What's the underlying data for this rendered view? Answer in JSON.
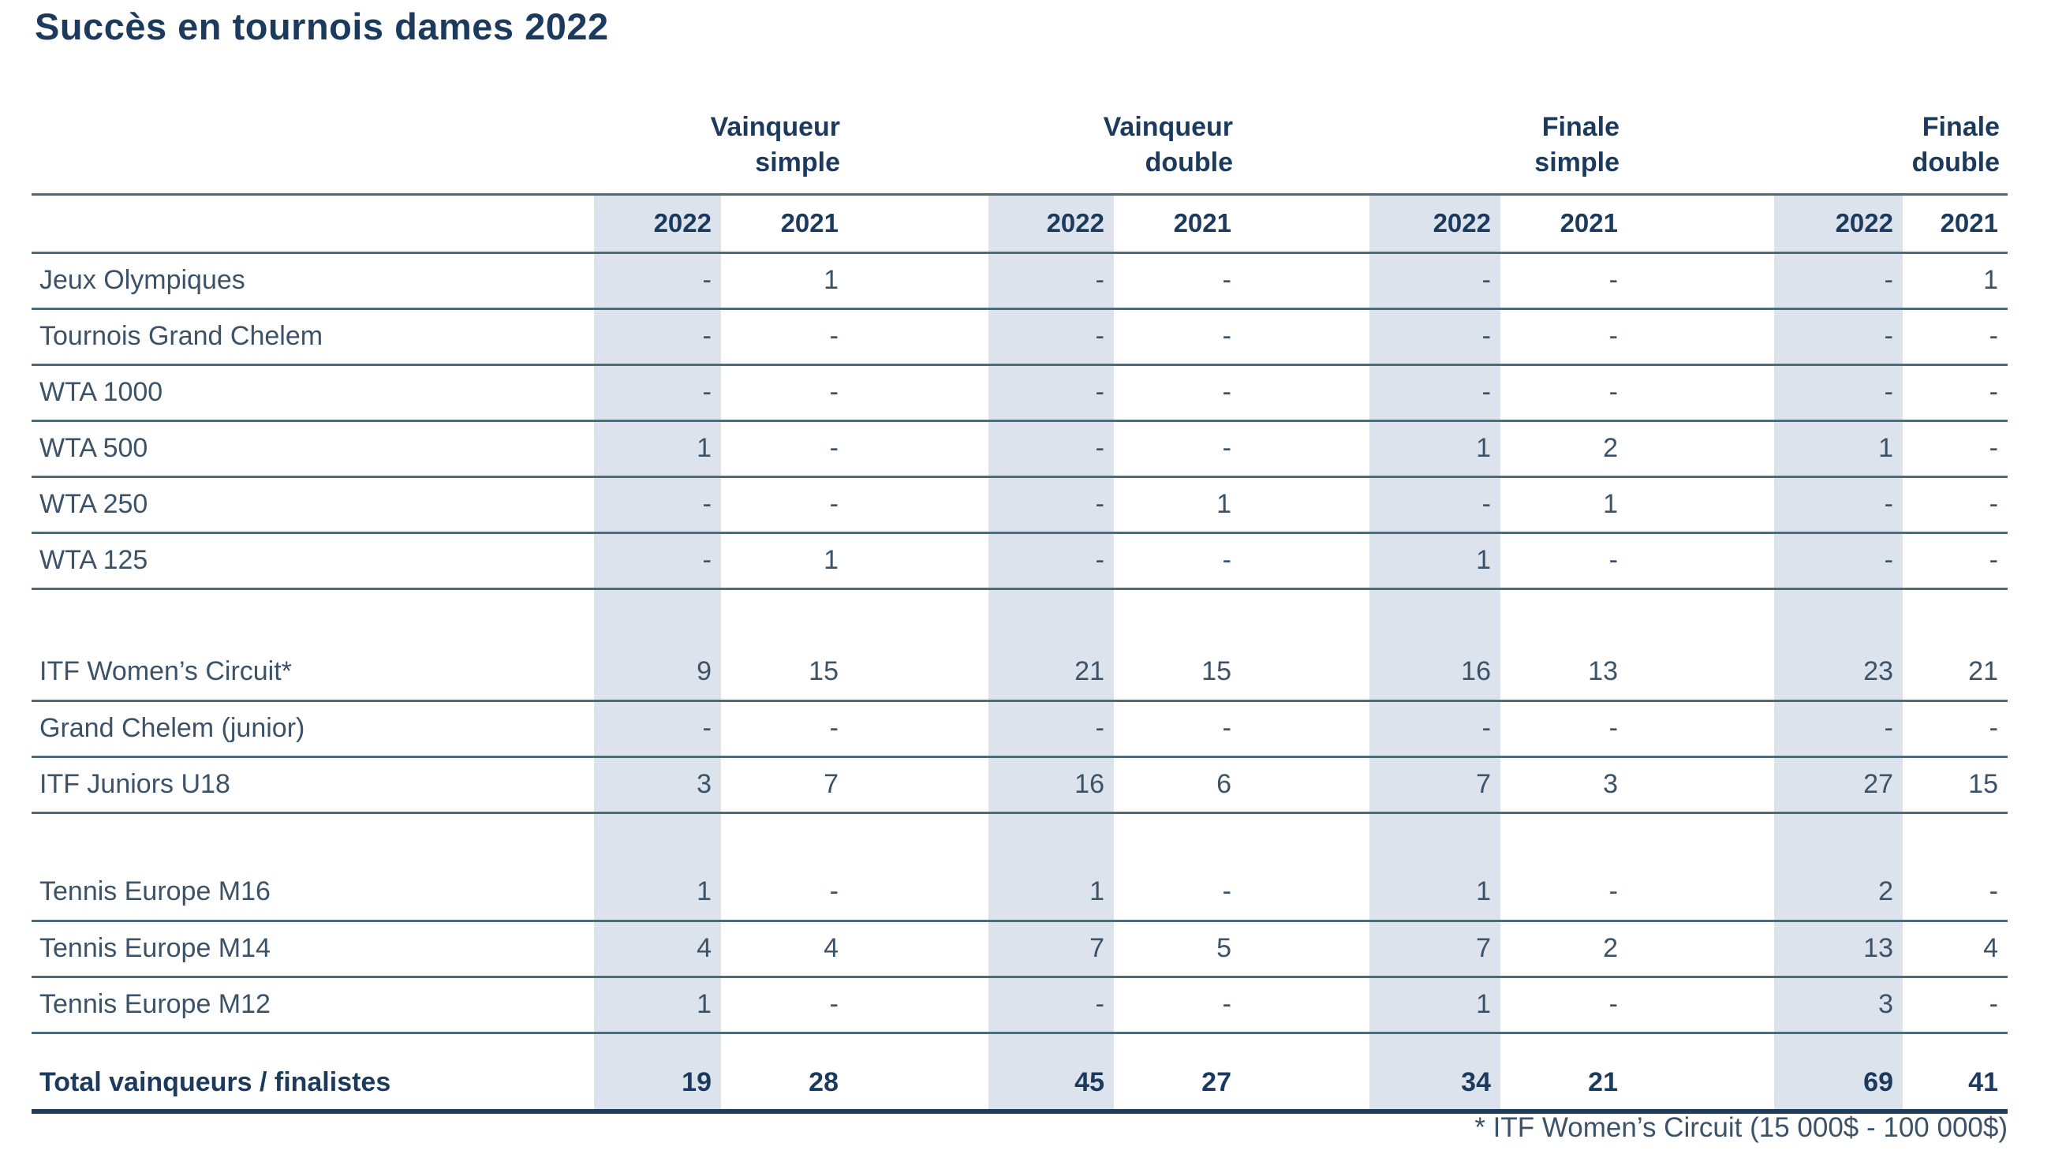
{
  "title": "Succès en tournois dames 2022",
  "footnote": "* ITF Women’s Circuit (15 000$ - 100 000$)",
  "colors": {
    "band": "#dde3ec",
    "rule": "#4e6b78",
    "rule_heavy": "#1f3d5c",
    "heading_text": "#1b3a5e",
    "body_text": "#3b5268"
  },
  "table": {
    "groups": [
      {
        "line1": "Vainqueur",
        "line2": "simple"
      },
      {
        "line1": "Vainqueur",
        "line2": "double"
      },
      {
        "line1": "Finale",
        "line2": "simple"
      },
      {
        "line1": "Finale",
        "line2": "double"
      }
    ],
    "year_columns": [
      "2022",
      "2021"
    ],
    "sections": [
      {
        "name": "pro",
        "rows": [
          {
            "label": "Jeux Olympiques",
            "values": [
              "-",
              "1",
              "-",
              "-",
              "-",
              "-",
              "-",
              "1"
            ]
          },
          {
            "label": "Tournois Grand Chelem",
            "values": [
              "-",
              "-",
              "-",
              "-",
              "-",
              "-",
              "-",
              "-"
            ]
          },
          {
            "label": "WTA 1000",
            "values": [
              "-",
              "-",
              "-",
              "-",
              "-",
              "-",
              "-",
              "-"
            ]
          },
          {
            "label": "WTA 500",
            "values": [
              "1",
              "-",
              "-",
              "-",
              "1",
              "2",
              "1",
              "-"
            ]
          },
          {
            "label": "WTA 250",
            "values": [
              "-",
              "-",
              "-",
              "1",
              "-",
              "1",
              "-",
              "-"
            ]
          },
          {
            "label": "WTA 125",
            "values": [
              "-",
              "1",
              "-",
              "-",
              "1",
              "-",
              "-",
              "-"
            ]
          }
        ]
      },
      {
        "name": "itf",
        "rows": [
          {
            "label": "ITF Women’s Circuit*",
            "values": [
              "9",
              "15",
              "21",
              "15",
              "16",
              "13",
              "23",
              "21"
            ]
          },
          {
            "label": "Grand Chelem (junior)",
            "values": [
              "-",
              "-",
              "-",
              "-",
              "-",
              "-",
              "-",
              "-"
            ]
          },
          {
            "label": "ITF Juniors U18",
            "values": [
              "3",
              "7",
              "16",
              "6",
              "7",
              "3",
              "27",
              "15"
            ]
          }
        ]
      },
      {
        "name": "tennis-europe",
        "rows": [
          {
            "label": "Tennis Europe M16",
            "values": [
              "1",
              "-",
              "1",
              "-",
              "1",
              "-",
              "2",
              "-"
            ]
          },
          {
            "label": "Tennis Europe M14",
            "values": [
              "4",
              "4",
              "7",
              "5",
              "7",
              "2",
              "13",
              "4"
            ]
          },
          {
            "label": "Tennis Europe M12",
            "values": [
              "1",
              "-",
              "-",
              "-",
              "1",
              "-",
              "3",
              "-"
            ]
          }
        ]
      }
    ],
    "total_row": {
      "label": "Total vainqueurs / finalistes",
      "values": [
        "19",
        "28",
        "45",
        "27",
        "34",
        "21",
        "69",
        "41"
      ]
    }
  }
}
